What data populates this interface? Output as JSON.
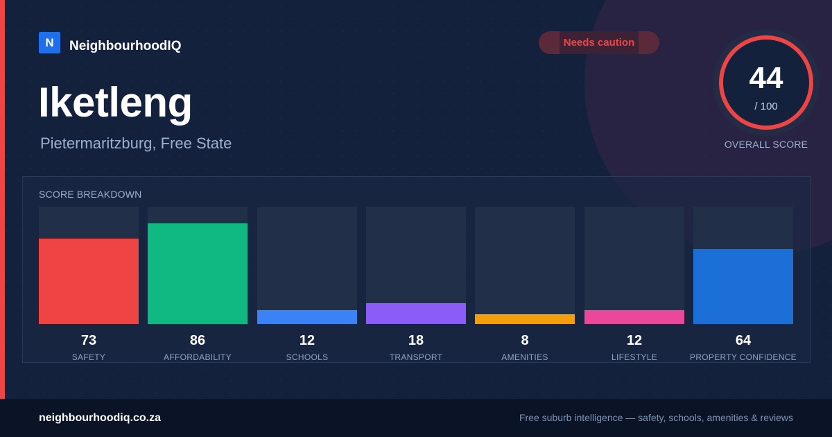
{
  "brand": {
    "logo_letter": "N",
    "name": "NeighbourhoodIQ",
    "accent_color": "#1f6feb"
  },
  "suburb": {
    "name": "Iketleng",
    "location": "Pietermaritzburg, Free State"
  },
  "status": {
    "label": "Needs caution",
    "color": "#ef4444"
  },
  "overall": {
    "value": "44",
    "max": "/ 100",
    "caption": "OVERALL SCORE",
    "ring_color": "#ef4444"
  },
  "breakdown": {
    "title": "SCORE BREAKDOWN",
    "scale_max": 100,
    "items": [
      {
        "value": 73,
        "label": "SAFETY",
        "color": "#ef4444"
      },
      {
        "value": 86,
        "label": "AFFORDABILITY",
        "color": "#10b981"
      },
      {
        "value": 12,
        "label": "SCHOOLS",
        "color": "#3b82f6"
      },
      {
        "value": 18,
        "label": "TRANSPORT",
        "color": "#8b5cf6"
      },
      {
        "value": 8,
        "label": "AMENITIES",
        "color": "#f59e0b"
      },
      {
        "value": 12,
        "label": "LIFESTYLE",
        "color": "#ec4899"
      },
      {
        "value": 64,
        "label": "PROPERTY CONFIDENCE",
        "color": "#1d6fd8"
      }
    ]
  },
  "footer": {
    "url": "neighbourhoodiq.co.za",
    "tagline": "Free suburb intelligence — safety, schools, amenities & reviews"
  }
}
